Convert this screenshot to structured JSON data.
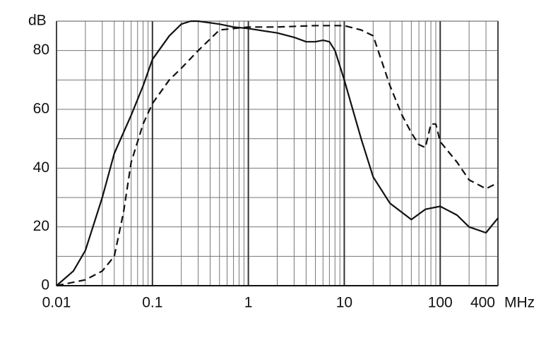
{
  "chart_data": {
    "type": "line",
    "y_label": "dB",
    "x_label": "MHz",
    "xscale": "log",
    "grid": true,
    "xlim": [
      0.01,
      400
    ],
    "xticks": [
      0.01,
      0.1,
      1,
      10,
      100,
      400
    ],
    "ylim": [
      0,
      90
    ],
    "yticks": [
      0,
      20,
      40,
      60,
      80
    ],
    "minor_yticks": [
      10,
      30,
      50,
      70,
      90
    ],
    "series": [
      {
        "color": "#111111",
        "dash": "solid",
        "x": [
          0.01,
          0.015,
          0.02,
          0.03,
          0.04,
          0.06,
          0.08,
          0.1,
          0.15,
          0.2,
          0.25,
          0.3,
          0.5,
          0.7,
          1,
          2,
          3,
          4,
          5,
          6,
          7,
          8,
          10,
          15,
          20,
          30,
          50,
          70,
          100,
          150,
          200,
          300,
          400
        ],
        "values": [
          0,
          5,
          12,
          30,
          45,
          58,
          68,
          77,
          85,
          89,
          90,
          90,
          89,
          88,
          87.5,
          86,
          84.5,
          83,
          83,
          83.5,
          83,
          80,
          70,
          50,
          37,
          28,
          22.5,
          26,
          27,
          24,
          20,
          18,
          23
        ]
      },
      {
        "color": "#111111",
        "dash": "dashed",
        "x": [
          0.01,
          0.02,
          0.03,
          0.04,
          0.05,
          0.06,
          0.08,
          0.1,
          0.15,
          0.2,
          0.3,
          0.5,
          1,
          2,
          5,
          10,
          15,
          20,
          30,
          40,
          50,
          60,
          70,
          80,
          90,
          100,
          150,
          200,
          300,
          400
        ],
        "values": [
          0,
          2,
          5,
          10,
          25,
          42,
          55,
          62,
          70,
          74,
          80,
          87,
          88,
          88,
          88.5,
          88.5,
          87,
          85,
          68,
          58,
          52,
          48,
          47,
          55,
          55,
          49,
          42,
          36,
          33,
          35
        ]
      }
    ]
  }
}
